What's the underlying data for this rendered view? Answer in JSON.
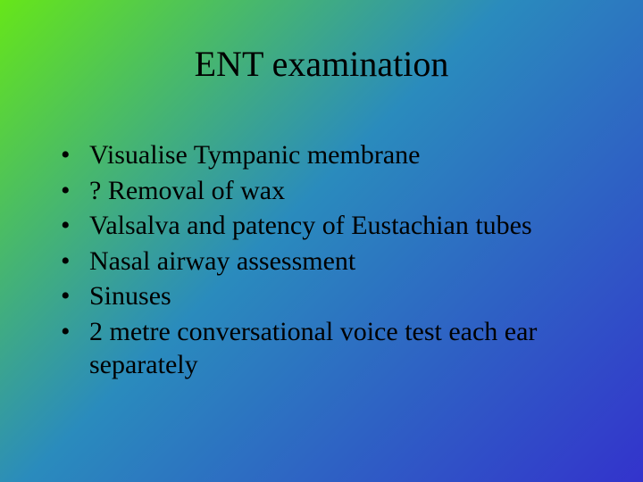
{
  "slide": {
    "title": "ENT examination",
    "bullets": [
      "Visualise Tympanic membrane",
      "? Removal of wax",
      "Valsalva and patency of Eustachian tubes",
      "Nasal airway assessment",
      "Sinuses",
      "2 metre conversational voice test each ear separately"
    ],
    "background": {
      "type": "diagonal-gradient",
      "start_color": "#66e619",
      "mid_color": "#2a8bbd",
      "end_color": "#3333cc",
      "angle_deg": 135
    },
    "title_fontsize": 40,
    "bullet_fontsize": 30,
    "font_family": "Times New Roman",
    "text_color": "#000000"
  }
}
